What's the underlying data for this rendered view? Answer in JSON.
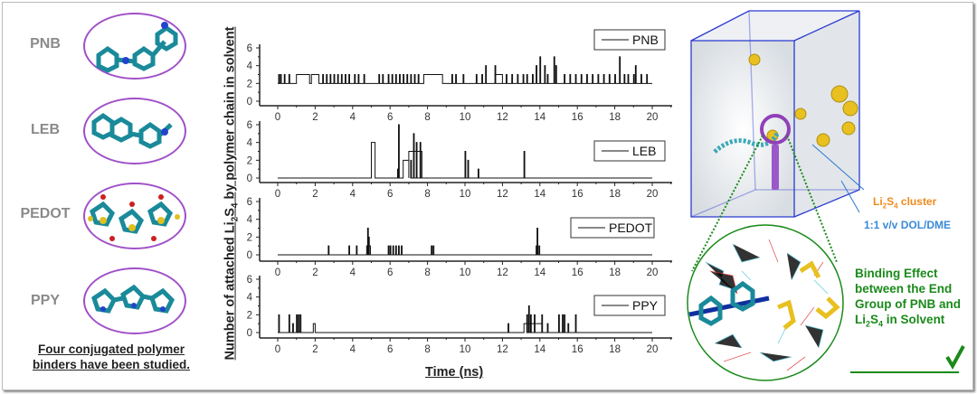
{
  "polymers": [
    {
      "name": "PNB"
    },
    {
      "name": "LEB"
    },
    {
      "name": "PEDOT"
    },
    {
      "name": "PPY"
    }
  ],
  "caption": "Four conjugated polymer binders have been studied.",
  "annotations": {
    "cluster_prefix": "Li",
    "cluster_sub1": "2",
    "cluster_mid": "S",
    "cluster_sub2": "4",
    "cluster_suffix": " cluster",
    "solvent": "1:1 v/v DOL/DME",
    "binding_line1": "Binding Effect between the End Group of PNB and Li",
    "binding_sub1": "2",
    "binding_mid": "S",
    "binding_sub2": "4",
    "binding_line2": " in Solvent"
  },
  "colors": {
    "purple": "#a050c8",
    "cube": "#2a3ad0",
    "green": "#1a8a1a",
    "orange": "#f08a1c",
    "blue": "#3a8ad8",
    "teal": "#1a8a9a"
  },
  "chart_data": {
    "type": "line",
    "xlabel": "Time (ns)",
    "ylabel_parts": {
      "a": "Number of attached Li",
      "b": "2",
      "c": "S",
      "d": "4",
      "e": " by polymer chain in solvent"
    },
    "xlim": [
      0,
      20
    ],
    "ylim": [
      0,
      6
    ],
    "xticks": [
      0,
      2,
      4,
      6,
      8,
      10,
      12,
      14,
      16,
      18,
      20
    ],
    "yticks": [
      0,
      2,
      4,
      6
    ],
    "series": [
      {
        "name": "PNB",
        "baseline": 2,
        "plateaus": [
          [
            1.0,
            1.7,
            3
          ],
          [
            1.8,
            2.2,
            3
          ],
          [
            7.8,
            8.8,
            3
          ],
          [
            11.6,
            12.0,
            3
          ]
        ],
        "spikes": [
          [
            0.05,
            3
          ],
          [
            0.15,
            3
          ],
          [
            0.35,
            3
          ],
          [
            0.6,
            3
          ],
          [
            2.4,
            3
          ],
          [
            2.6,
            3
          ],
          [
            2.8,
            3
          ],
          [
            3.0,
            3
          ],
          [
            3.2,
            3
          ],
          [
            3.4,
            3
          ],
          [
            3.6,
            3
          ],
          [
            3.8,
            3
          ],
          [
            4.1,
            3
          ],
          [
            4.3,
            3
          ],
          [
            4.6,
            3
          ],
          [
            5.4,
            3
          ],
          [
            5.6,
            3
          ],
          [
            5.9,
            3
          ],
          [
            6.1,
            3
          ],
          [
            6.3,
            3
          ],
          [
            6.5,
            3
          ],
          [
            6.7,
            3
          ],
          [
            6.9,
            3
          ],
          [
            7.1,
            3
          ],
          [
            7.3,
            3
          ],
          [
            7.5,
            3
          ],
          [
            9.3,
            3
          ],
          [
            9.5,
            3
          ],
          [
            9.9,
            3
          ],
          [
            10.6,
            3
          ],
          [
            10.9,
            3
          ],
          [
            11.1,
            4
          ],
          [
            11.6,
            4
          ],
          [
            12.2,
            3
          ],
          [
            12.5,
            3
          ],
          [
            12.8,
            3
          ],
          [
            13.1,
            3
          ],
          [
            13.3,
            3
          ],
          [
            13.6,
            3
          ],
          [
            13.8,
            4
          ],
          [
            14.0,
            5
          ],
          [
            14.25,
            4
          ],
          [
            14.4,
            3
          ],
          [
            14.75,
            5
          ],
          [
            14.85,
            4
          ],
          [
            15.3,
            3
          ],
          [
            15.6,
            3
          ],
          [
            15.9,
            3
          ],
          [
            16.2,
            3
          ],
          [
            16.5,
            3
          ],
          [
            16.8,
            3
          ],
          [
            17.1,
            3
          ],
          [
            17.4,
            3
          ],
          [
            17.7,
            3
          ],
          [
            18.0,
            3
          ],
          [
            18.25,
            5
          ],
          [
            18.5,
            3
          ],
          [
            18.7,
            3
          ],
          [
            19.0,
            3
          ],
          [
            19.1,
            4
          ],
          [
            19.4,
            3
          ],
          [
            19.7,
            3
          ]
        ]
      },
      {
        "name": "LEB",
        "baseline": 0,
        "plateaus": [
          [
            5.0,
            5.2,
            4
          ],
          [
            6.7,
            7.0,
            2
          ],
          [
            7.0,
            7.7,
            3
          ]
        ],
        "spikes": [
          [
            6.4,
            1
          ],
          [
            6.45,
            6
          ],
          [
            7.1,
            2
          ],
          [
            7.25,
            5
          ],
          [
            7.4,
            4
          ],
          [
            7.6,
            4
          ],
          [
            10.0,
            3
          ],
          [
            10.15,
            2
          ],
          [
            10.7,
            1
          ],
          [
            13.15,
            3
          ]
        ]
      },
      {
        "name": "PEDOT",
        "baseline": 0,
        "plateaus": [
          [
            4.75,
            4.95,
            1
          ]
        ],
        "spikes": [
          [
            2.7,
            1
          ],
          [
            3.8,
            1
          ],
          [
            4.2,
            1
          ],
          [
            4.8,
            3
          ],
          [
            4.85,
            2
          ],
          [
            5.9,
            1
          ],
          [
            6.0,
            1
          ],
          [
            6.15,
            1
          ],
          [
            6.3,
            1
          ],
          [
            6.45,
            1
          ],
          [
            6.6,
            1
          ],
          [
            8.2,
            1
          ],
          [
            8.3,
            1
          ],
          [
            13.8,
            1
          ],
          [
            13.85,
            3
          ],
          [
            13.95,
            1
          ]
        ]
      },
      {
        "name": "PPY",
        "baseline": 0,
        "plateaus": [
          [
            1.9,
            2.0,
            1
          ],
          [
            13.15,
            14.1,
            1
          ]
        ],
        "spikes": [
          [
            0.05,
            2
          ],
          [
            0.6,
            2
          ],
          [
            0.8,
            1
          ],
          [
            1.0,
            2
          ],
          [
            1.1,
            2
          ],
          [
            1.2,
            2
          ],
          [
            12.3,
            1
          ],
          [
            13.3,
            2
          ],
          [
            13.4,
            3
          ],
          [
            13.5,
            2
          ],
          [
            13.7,
            2
          ],
          [
            14.1,
            2
          ],
          [
            14.4,
            1
          ],
          [
            15.0,
            2
          ],
          [
            15.2,
            2
          ],
          [
            15.3,
            2
          ],
          [
            15.5,
            1
          ],
          [
            15.9,
            2
          ]
        ]
      }
    ]
  }
}
